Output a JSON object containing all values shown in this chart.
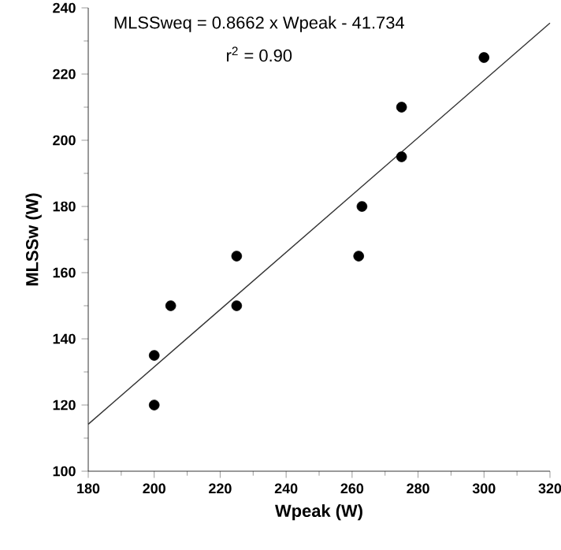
{
  "chart_data": {
    "type": "scatter",
    "xlabel": "Wpeak (W)",
    "ylabel": "MLSSw (W)",
    "annotations": [
      "MLSSweq = 0.8662 x Wpeak - 41.734",
      "r$^{2}$ = 0.90"
    ],
    "xlim": [
      180,
      320
    ],
    "ylim": [
      100,
      240
    ],
    "xticks": [
      180,
      200,
      220,
      240,
      260,
      280,
      300,
      320
    ],
    "yticks": [
      100,
      120,
      140,
      160,
      180,
      200,
      220,
      240
    ],
    "grid": false,
    "series": [
      {
        "color": "#000000",
        "marker": "circle",
        "x": [
          200,
          200,
          205,
          225,
          225,
          262,
          263,
          275,
          275,
          300
        ],
        "values": [
          120,
          135,
          150,
          150,
          165,
          165,
          180,
          195,
          210,
          225
        ]
      },
      {
        "type": "line",
        "color": "#333333",
        "line_style": "solid",
        "marker": "none",
        "x": [
          180,
          320
        ],
        "values": [
          114.2,
          235.4
        ]
      }
    ]
  }
}
